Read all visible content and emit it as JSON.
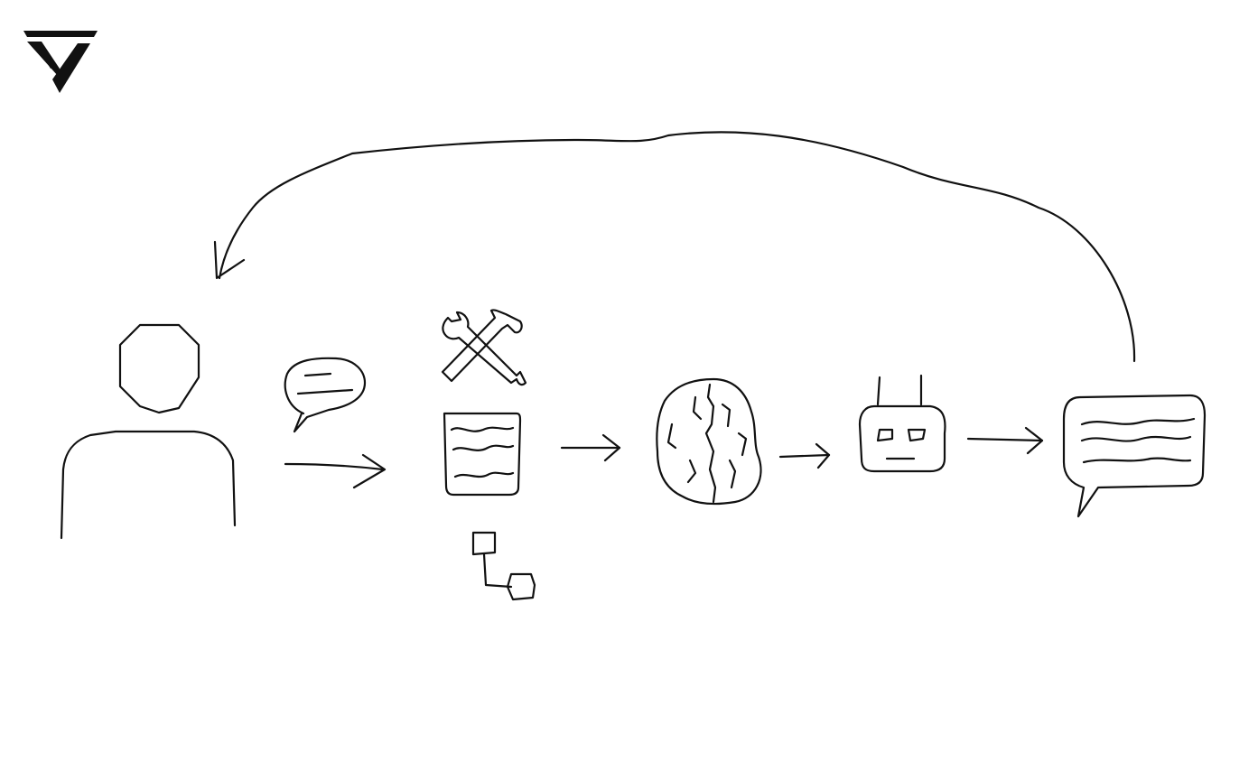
{
  "colors": {
    "ink": "#111111",
    "background": "#ffffff"
  },
  "icons": [
    "logo-icon",
    "user-icon",
    "speech-bubble-icon",
    "tools-icon",
    "document-icon",
    "workflow-icon",
    "brain-icon",
    "robot-icon",
    "response-bubble-icon"
  ]
}
